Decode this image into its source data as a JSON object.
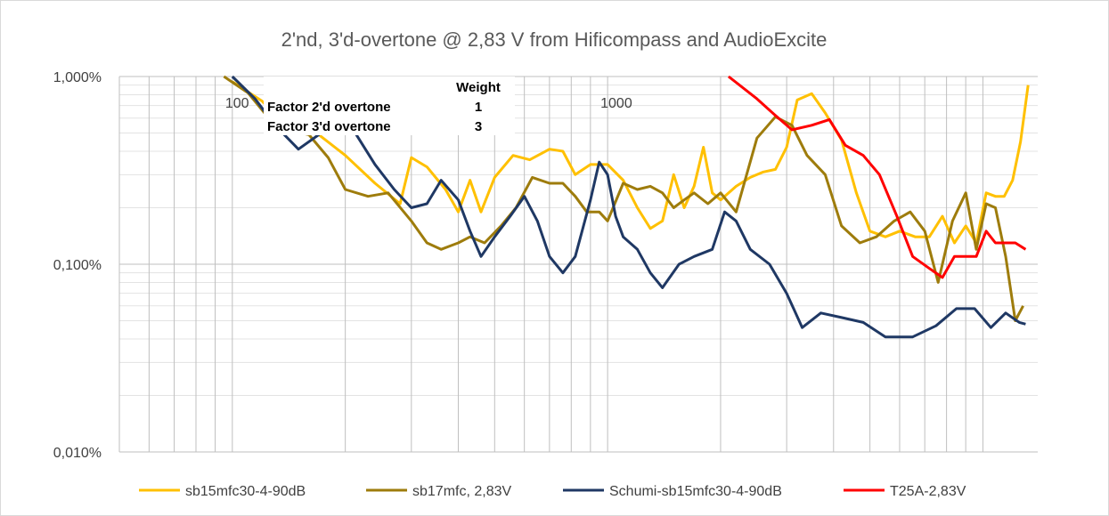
{
  "chart_data": {
    "type": "line",
    "title": "2'nd, 3'd-overtone @ 2,83 V from Hificompass and AudioExcite",
    "x_scale": "log",
    "y_scale": "log",
    "xlim": [
      50,
      14000
    ],
    "ylim": [
      0.0001,
      0.01
    ],
    "y_ticks": [
      {
        "value": 0.01,
        "label": "1,000%"
      },
      {
        "value": 0.001,
        "label": "0,100%"
      },
      {
        "value": 0.0001,
        "label": "0,010%"
      }
    ],
    "x_ticks": [
      {
        "value": 100,
        "label": "100"
      },
      {
        "value": 1000,
        "label": "1000"
      }
    ],
    "grid": true,
    "legend": "bottom",
    "weight_table": {
      "header": "Weight",
      "rows": [
        {
          "label": "Factor 2'd overtone",
          "value": "1"
        },
        {
          "label": "Factor 3'd overtone",
          "value": "3"
        }
      ]
    },
    "series": [
      {
        "name": "sb15mfc30-4-90dB",
        "color": "#ffc000",
        "points": [
          [
            100,
            0.0094
          ],
          [
            120,
            0.0074
          ],
          [
            140,
            0.0053
          ],
          [
            170,
            0.0049
          ],
          [
            200,
            0.0038
          ],
          [
            240,
            0.0027
          ],
          [
            280,
            0.0021
          ],
          [
            300,
            0.0037
          ],
          [
            330,
            0.0033
          ],
          [
            370,
            0.0025
          ],
          [
            400,
            0.0019
          ],
          [
            430,
            0.0028
          ],
          [
            460,
            0.0019
          ],
          [
            500,
            0.0029
          ],
          [
            560,
            0.0038
          ],
          [
            620,
            0.0036
          ],
          [
            700,
            0.0041
          ],
          [
            760,
            0.004
          ],
          [
            820,
            0.003
          ],
          [
            900,
            0.0034
          ],
          [
            1000,
            0.0034
          ],
          [
            1100,
            0.0028
          ],
          [
            1200,
            0.002
          ],
          [
            1300,
            0.00155
          ],
          [
            1400,
            0.0017
          ],
          [
            1500,
            0.003
          ],
          [
            1600,
            0.002
          ],
          [
            1700,
            0.0026
          ],
          [
            1800,
            0.0042
          ],
          [
            1900,
            0.0024
          ],
          [
            2000,
            0.0022
          ],
          [
            2200,
            0.0026
          ],
          [
            2400,
            0.0029
          ],
          [
            2600,
            0.0031
          ],
          [
            2800,
            0.0032
          ],
          [
            3000,
            0.0042
          ],
          [
            3200,
            0.0075
          ],
          [
            3500,
            0.0081
          ],
          [
            3800,
            0.0064
          ],
          [
            4200,
            0.0046
          ],
          [
            4600,
            0.0024
          ],
          [
            5000,
            0.0015
          ],
          [
            5500,
            0.0014
          ],
          [
            6000,
            0.0015
          ],
          [
            6600,
            0.0014
          ],
          [
            7200,
            0.0014
          ],
          [
            7800,
            0.0018
          ],
          [
            8400,
            0.0013
          ],
          [
            9000,
            0.0016
          ],
          [
            9600,
            0.0013
          ],
          [
            10200,
            0.0024
          ],
          [
            10800,
            0.0023
          ],
          [
            11400,
            0.0023
          ],
          [
            12000,
            0.0028
          ],
          [
            12600,
            0.0045
          ],
          [
            13200,
            0.009
          ]
        ]
      },
      {
        "name": "sb17mfc, 2,83V",
        "color": "#9e7c0c",
        "points": [
          [
            95,
            0.01
          ],
          [
            110,
            0.0082
          ],
          [
            125,
            0.006
          ],
          [
            140,
            0.0052
          ],
          [
            160,
            0.0049
          ],
          [
            180,
            0.0037
          ],
          [
            200,
            0.0025
          ],
          [
            230,
            0.0023
          ],
          [
            260,
            0.0024
          ],
          [
            300,
            0.0017
          ],
          [
            330,
            0.0013
          ],
          [
            360,
            0.0012
          ],
          [
            400,
            0.0013
          ],
          [
            430,
            0.0014
          ],
          [
            470,
            0.0013
          ],
          [
            520,
            0.0016
          ],
          [
            570,
            0.002
          ],
          [
            630,
            0.0029
          ],
          [
            700,
            0.0027
          ],
          [
            760,
            0.0027
          ],
          [
            820,
            0.0023
          ],
          [
            880,
            0.0019
          ],
          [
            950,
            0.0019
          ],
          [
            1000,
            0.0017
          ],
          [
            1100,
            0.0027
          ],
          [
            1200,
            0.0025
          ],
          [
            1300,
            0.0026
          ],
          [
            1400,
            0.0024
          ],
          [
            1500,
            0.002
          ],
          [
            1600,
            0.0022
          ],
          [
            1700,
            0.0024
          ],
          [
            1850,
            0.0021
          ],
          [
            2000,
            0.0024
          ],
          [
            2200,
            0.0019
          ],
          [
            2500,
            0.0047
          ],
          [
            2800,
            0.0061
          ],
          [
            3100,
            0.0055
          ],
          [
            3400,
            0.0038
          ],
          [
            3800,
            0.003
          ],
          [
            4200,
            0.0016
          ],
          [
            4700,
            0.0013
          ],
          [
            5200,
            0.0014
          ],
          [
            5800,
            0.0017
          ],
          [
            6400,
            0.0019
          ],
          [
            7000,
            0.0015
          ],
          [
            7600,
            0.0008
          ],
          [
            8300,
            0.0017
          ],
          [
            9000,
            0.0024
          ],
          [
            9600,
            0.0012
          ],
          [
            10200,
            0.0021
          ],
          [
            10800,
            0.002
          ],
          [
            11500,
            0.0011
          ],
          [
            12200,
            0.0005
          ],
          [
            12800,
            0.0006
          ]
        ]
      },
      {
        "name": "Schumi-sb15mfc30-4-90dB",
        "color": "#1f3864",
        "points": [
          [
            100,
            0.0102
          ],
          [
            115,
            0.0076
          ],
          [
            130,
            0.0055
          ],
          [
            150,
            0.0041
          ],
          [
            170,
            0.0049
          ],
          [
            190,
            0.0059
          ],
          [
            210,
            0.0052
          ],
          [
            240,
            0.0034
          ],
          [
            270,
            0.0025
          ],
          [
            300,
            0.002
          ],
          [
            330,
            0.0021
          ],
          [
            360,
            0.0028
          ],
          [
            400,
            0.0022
          ],
          [
            430,
            0.0015
          ],
          [
            460,
            0.0011
          ],
          [
            500,
            0.0014
          ],
          [
            550,
            0.0018
          ],
          [
            600,
            0.0023
          ],
          [
            650,
            0.0017
          ],
          [
            700,
            0.0011
          ],
          [
            760,
            0.0009
          ],
          [
            820,
            0.0011
          ],
          [
            900,
            0.0022
          ],
          [
            950,
            0.0035
          ],
          [
            1000,
            0.003
          ],
          [
            1050,
            0.0018
          ],
          [
            1100,
            0.0014
          ],
          [
            1200,
            0.0012
          ],
          [
            1300,
            0.0009
          ],
          [
            1400,
            0.00075
          ],
          [
            1550,
            0.001
          ],
          [
            1700,
            0.0011
          ],
          [
            1900,
            0.0012
          ],
          [
            2050,
            0.0019
          ],
          [
            2200,
            0.0017
          ],
          [
            2400,
            0.0012
          ],
          [
            2700,
            0.001
          ],
          [
            3000,
            0.0007
          ],
          [
            3300,
            0.00046
          ],
          [
            3700,
            0.00055
          ],
          [
            4200,
            0.00052
          ],
          [
            4800,
            0.00049
          ],
          [
            5500,
            0.00041
          ],
          [
            6500,
            0.00041
          ],
          [
            7500,
            0.00047
          ],
          [
            8500,
            0.00058
          ],
          [
            9500,
            0.00058
          ],
          [
            10500,
            0.00046
          ],
          [
            11500,
            0.00055
          ],
          [
            12500,
            0.00049
          ],
          [
            13000,
            0.00048
          ]
        ]
      },
      {
        "name": "T25A-2,83V",
        "color": "#ff0000",
        "points": [
          [
            2100,
            0.01
          ],
          [
            2500,
            0.0076
          ],
          [
            2800,
            0.0062
          ],
          [
            3100,
            0.0052
          ],
          [
            3500,
            0.0055
          ],
          [
            3900,
            0.0059
          ],
          [
            4300,
            0.0043
          ],
          [
            4800,
            0.0038
          ],
          [
            5300,
            0.003
          ],
          [
            5900,
            0.0018
          ],
          [
            6500,
            0.0011
          ],
          [
            7200,
            0.00095
          ],
          [
            7800,
            0.00085
          ],
          [
            8400,
            0.0011
          ],
          [
            9000,
            0.0011
          ],
          [
            9600,
            0.0011
          ],
          [
            10200,
            0.0015
          ],
          [
            10800,
            0.0013
          ],
          [
            11500,
            0.0013
          ],
          [
            12200,
            0.0013
          ],
          [
            13000,
            0.0012
          ]
        ]
      }
    ]
  }
}
